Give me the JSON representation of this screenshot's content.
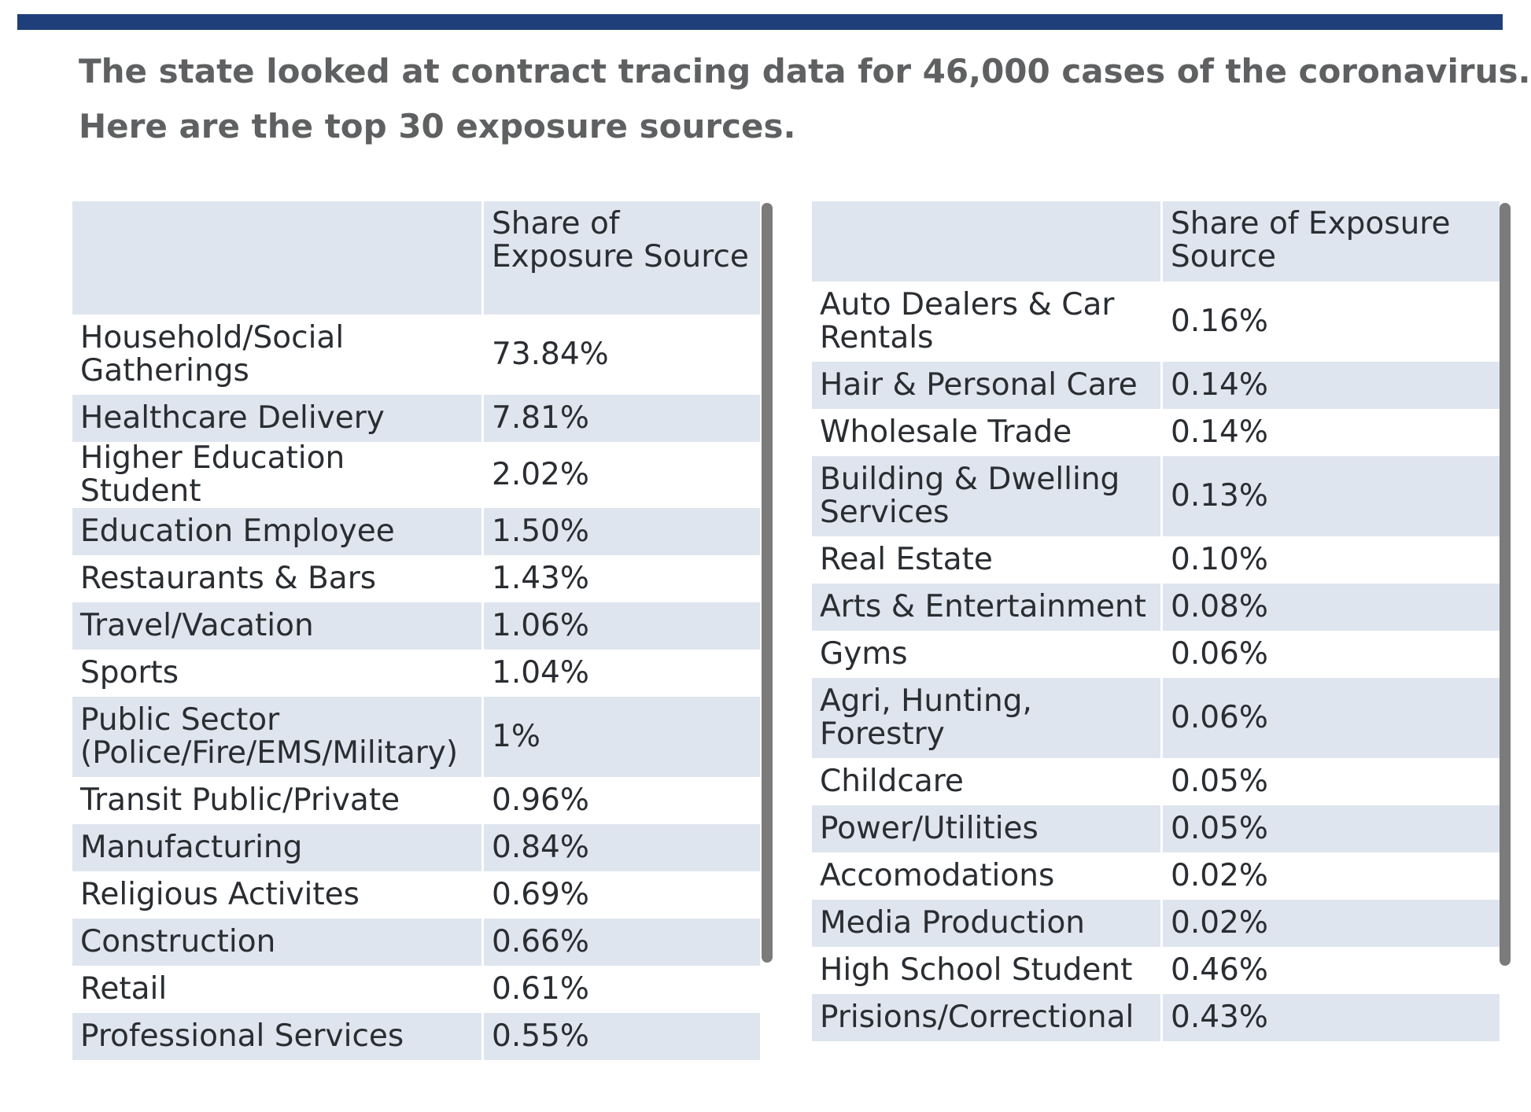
{
  "colors": {
    "top_rule": "#1f3f7a",
    "row_shade": "#dfe5ef",
    "headline": "#5f6061"
  },
  "headline": {
    "line1": "The state looked at contract tracing data for 46,000 cases of the coronavirus.",
    "line2": "Here are the top 30 exposure sources."
  },
  "chart_data": {
    "type": "table",
    "title": "The state looked at contract tracing data for 46,000 cases of the coronavirus. Here are the top 30 exposure sources.",
    "tables": [
      {
        "header": [
          "",
          "Share of Exposure Source"
        ],
        "rows": [
          [
            "Household/Social Gatherings",
            "73.84%"
          ],
          [
            "Healthcare Delivery",
            "7.81%"
          ],
          [
            "Higher Education Student",
            "2.02%"
          ],
          [
            "Education Employee",
            "1.50%"
          ],
          [
            "Restaurants & Bars",
            "1.43%"
          ],
          [
            "Travel/Vacation",
            "1.06%"
          ],
          [
            "Sports",
            "1.04%"
          ],
          [
            "Public Sector (Police/Fire/EMS/Military)",
            "1%"
          ],
          [
            "Transit Public/Private",
            "0.96%"
          ],
          [
            "Manufacturing",
            "0.84%"
          ],
          [
            "Religious Activites",
            "0.69%"
          ],
          [
            "Construction",
            "0.66%"
          ],
          [
            "Retail",
            "0.61%"
          ],
          [
            "Professional Services",
            "0.55%"
          ]
        ]
      },
      {
        "header": [
          "",
          "Share of Exposure Source"
        ],
        "rows": [
          [
            "Auto Dealers & Car Rentals",
            "0.16%"
          ],
          [
            "Hair & Personal Care",
            "0.14%"
          ],
          [
            "Wholesale Trade",
            "0.14%"
          ],
          [
            "Building & Dwelling Services",
            "0.13%"
          ],
          [
            "Real Estate",
            "0.10%"
          ],
          [
            "Arts & Entertainment",
            "0.08%"
          ],
          [
            "Gyms",
            "0.06%"
          ],
          [
            "Agri, Hunting, Forestry",
            "0.06%"
          ],
          [
            "Childcare",
            "0.05%"
          ],
          [
            "Power/Utilities",
            "0.05%"
          ],
          [
            "Accomodations",
            "0.02%"
          ],
          [
            "Media Production",
            "0.02%"
          ],
          [
            "High School Student",
            "0.46%"
          ],
          [
            "Prisions/Correctional",
            "0.43%"
          ]
        ]
      }
    ]
  }
}
